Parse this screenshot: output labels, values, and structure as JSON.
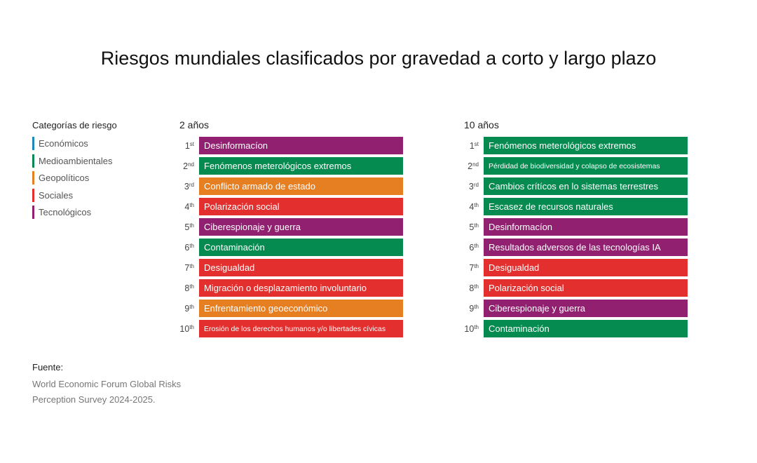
{
  "title": "Riesgos mundiales clasificados por gravedad a corto y largo plazo",
  "legend": {
    "title": "Categorías de riesgo",
    "items": [
      {
        "label": "Económicos",
        "color": "#1e88b8"
      },
      {
        "label": "Medioambientales",
        "color": "#058a50"
      },
      {
        "label": "Geopolíticos",
        "color": "#e67e22"
      },
      {
        "label": "Sociales",
        "color": "#e3302e"
      },
      {
        "label": "Tecnológicos",
        "color": "#912070"
      }
    ]
  },
  "source": {
    "label": "Fuente:",
    "lines": [
      "World Economic Forum Global Risks",
      "Perception Survey 2024-2025."
    ]
  },
  "chart_data": [
    {
      "type": "table",
      "title": "2 años",
      "rows": [
        {
          "rank": "1",
          "suffix": "st",
          "label": "Desinformacíon",
          "category": "Tecnológicos",
          "color": "#912070"
        },
        {
          "rank": "2",
          "suffix": "nd",
          "label": "Fenómenos meterológicos extremos",
          "category": "Medioambientales",
          "color": "#058a50"
        },
        {
          "rank": "3",
          "suffix": "rd",
          "label": "Conflicto armado de estado",
          "category": "Geopolíticos",
          "color": "#e67e22"
        },
        {
          "rank": "4",
          "suffix": "th",
          "label": "Polarización social",
          "category": "Sociales",
          "color": "#e3302e"
        },
        {
          "rank": "5",
          "suffix": "th",
          "label": "Ciberespionaje y guerra",
          "category": "Tecnológicos",
          "color": "#912070"
        },
        {
          "rank": "6",
          "suffix": "th",
          "label": "Contaminación",
          "category": "Medioambientales",
          "color": "#058a50"
        },
        {
          "rank": "7",
          "suffix": "th",
          "label": "Desigualdad",
          "category": "Sociales",
          "color": "#e3302e"
        },
        {
          "rank": "8",
          "suffix": "th",
          "label": "Migración o desplazamiento involuntario",
          "category": "Sociales",
          "color": "#e3302e"
        },
        {
          "rank": "9",
          "suffix": "th",
          "label": "Enfrentamiento geoeconómico",
          "category": "Geopolíticos",
          "color": "#e67e22"
        },
        {
          "rank": "10",
          "suffix": "th",
          "label": "Erosión de los derechos humanos y/o libertades cívicas",
          "category": "Sociales",
          "color": "#e3302e",
          "small": true
        }
      ]
    },
    {
      "type": "table",
      "title": "10 años",
      "rows": [
        {
          "rank": "1",
          "suffix": "st",
          "label": "Fenómenos meterológicos extremos",
          "category": "Medioambientales",
          "color": "#058a50"
        },
        {
          "rank": "2",
          "suffix": "nd",
          "label": "Pérdidad de biodiversidad y colapso de ecosistemas",
          "category": "Medioambientales",
          "color": "#058a50",
          "small": true
        },
        {
          "rank": "3",
          "suffix": "rd",
          "label": "Cambios crítícos en lo sistemas terrestres",
          "category": "Medioambientales",
          "color": "#058a50"
        },
        {
          "rank": "4",
          "suffix": "th",
          "label": "Escasez de recursos naturales",
          "category": "Medioambientales",
          "color": "#058a50"
        },
        {
          "rank": "5",
          "suffix": "th",
          "label": "Desinformacíon",
          "category": "Tecnológicos",
          "color": "#912070"
        },
        {
          "rank": "6",
          "suffix": "th",
          "label": "Resultados adversos de las tecnologías IA",
          "category": "Tecnológicos",
          "color": "#912070"
        },
        {
          "rank": "7",
          "suffix": "th",
          "label": "Desigualdad",
          "category": "Sociales",
          "color": "#e3302e"
        },
        {
          "rank": "8",
          "suffix": "th",
          "label": "Polarización social",
          "category": "Sociales",
          "color": "#e3302e"
        },
        {
          "rank": "9",
          "suffix": "th",
          "label": "Ciberespionaje y guerra",
          "category": "Tecnológicos",
          "color": "#912070"
        },
        {
          "rank": "10",
          "suffix": "th",
          "label": "Contaminación",
          "category": "Medioambientales",
          "color": "#058a50"
        }
      ]
    }
  ]
}
